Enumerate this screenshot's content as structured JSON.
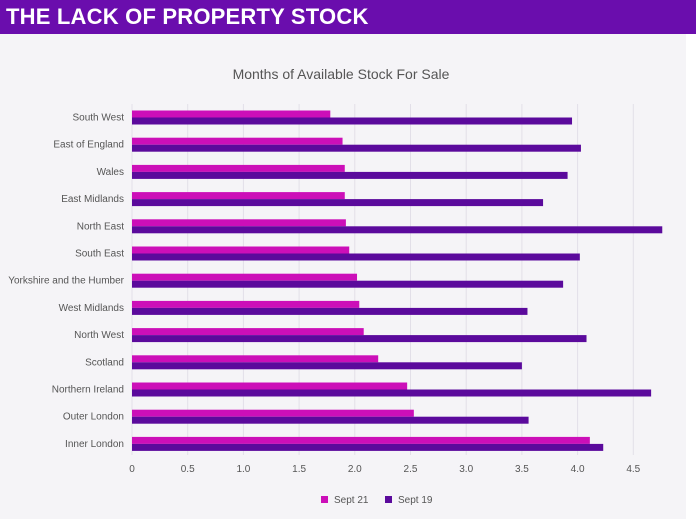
{
  "header": {
    "title": "THE LACK OF PROPERTY STOCK"
  },
  "colors": {
    "header_bg": "#6a0dad",
    "sept21": "#cc0fb8",
    "sept19": "#5b0a9c",
    "grid": "#e2dfe8",
    "text": "#555555"
  },
  "chart_data": {
    "type": "bar",
    "orientation": "horizontal",
    "title": "Months of Available Stock For Sale",
    "xlabel": "",
    "ylabel": "",
    "xlim": [
      0,
      4.75
    ],
    "xticks": [
      "0",
      "0.5",
      "1.0",
      "1.5",
      "2.0",
      "2.5",
      "3.0",
      "3.5",
      "4.0",
      "4.5"
    ],
    "grid": true,
    "legend_position": "bottom",
    "categories": [
      "South West",
      "East of England",
      "Wales",
      "East Midlands",
      "North East",
      "South East",
      "Yorkshire and the Humber",
      "West Midlands",
      "North West",
      "Scotland",
      "Northern Ireland",
      "Outer London",
      "Inner London"
    ],
    "series": [
      {
        "name": "Sept 21",
        "color": "#cc0fb8",
        "values": [
          1.78,
          1.89,
          1.91,
          1.91,
          1.92,
          1.95,
          2.02,
          2.04,
          2.08,
          2.21,
          2.47,
          2.53,
          4.11
        ]
      },
      {
        "name": "Sept 19",
        "color": "#5b0a9c",
        "values": [
          3.95,
          4.03,
          3.91,
          3.69,
          4.76,
          4.02,
          3.87,
          3.55,
          4.08,
          3.5,
          4.66,
          3.56,
          4.23
        ]
      }
    ]
  }
}
